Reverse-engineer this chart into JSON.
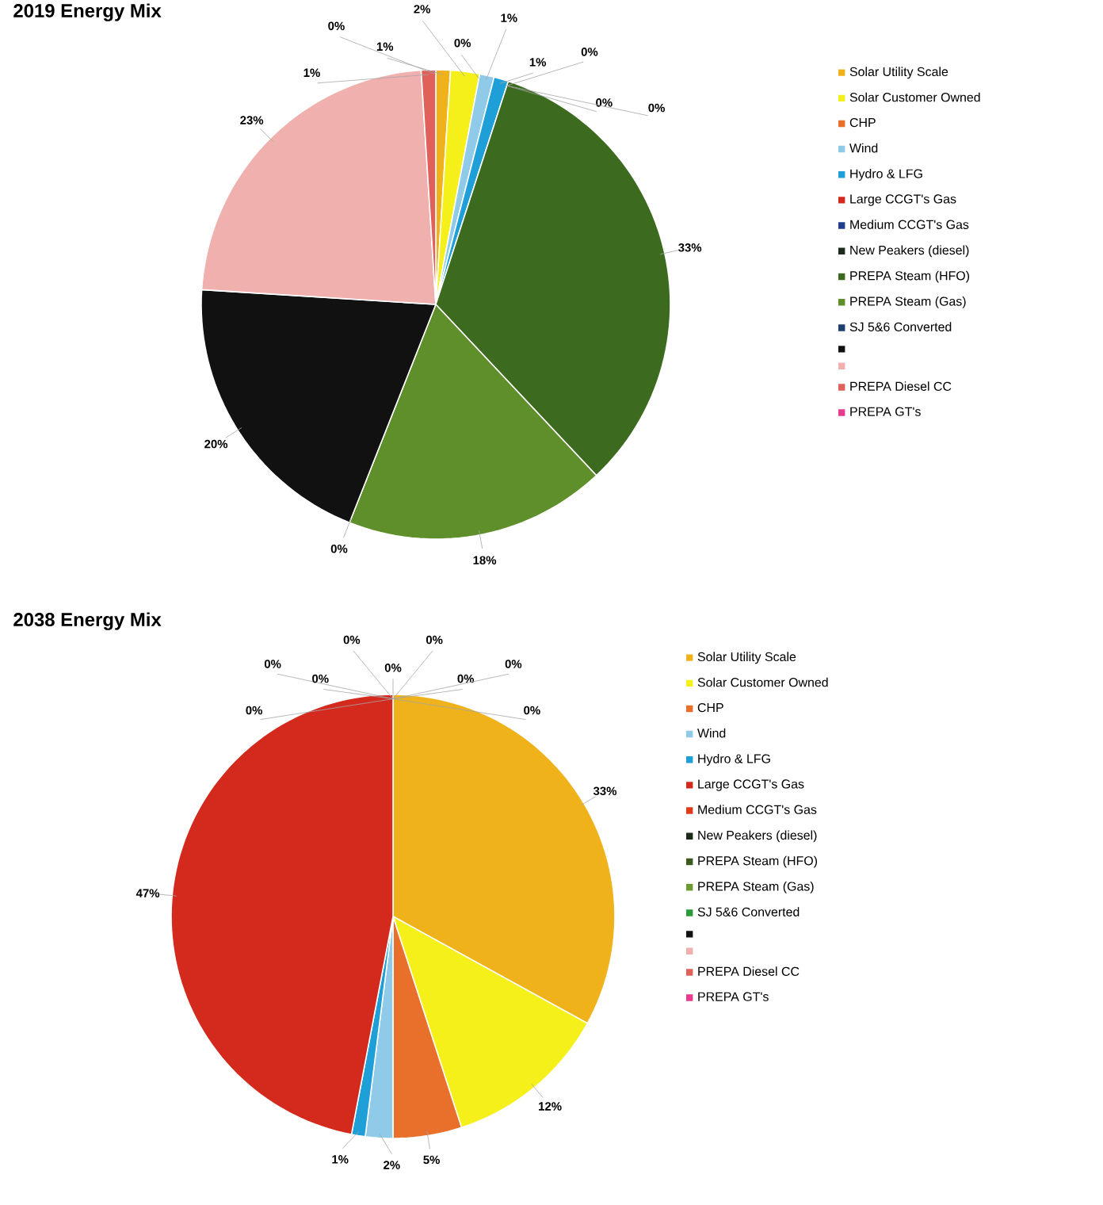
{
  "chart_data": [
    {
      "type": "pie",
      "title": "2019 Energy Mix",
      "categories": [
        "Solar Utility Scale",
        "Solar Customer Owned",
        "CHP",
        "Wind",
        "Hydro & LFG",
        "Large CCGT's Gas",
        "Medium CCGT's Gas",
        "New Peakers (diesel)",
        "PREPA Steam (HFO)",
        "PREPA Steam (Gas)",
        "SJ 5&6 Converted",
        null,
        null,
        "PREPA Diesel CC",
        "PREPA GT's"
      ],
      "values": [
        1,
        2,
        0,
        1,
        1,
        0,
        0,
        0,
        33,
        18,
        0,
        20,
        23,
        1,
        0
      ],
      "value_labels": [
        "1%",
        "2%",
        "0%",
        "1%",
        "1%",
        "0%",
        "0%",
        "0%",
        "33%",
        "18%",
        "0%",
        "20%",
        "23%",
        "1%",
        "0%"
      ],
      "colors": [
        "#f0b21a",
        "#f5ef1a",
        "#e8702a",
        "#8fcbe8",
        "#1e9fd8",
        "#d42a1e",
        "#1f3f8a",
        "#1c2a1c",
        "#3c6a1e",
        "#5e8f2a",
        "#1f3f70",
        "#111111",
        "#f0b0ae",
        "#e0605a",
        "#e83a8f"
      ],
      "legend": "right"
    },
    {
      "type": "pie",
      "title": "2038 Energy Mix",
      "categories": [
        "Solar Utility Scale",
        "Solar Customer Owned",
        "CHP",
        "Wind",
        "Hydro & LFG",
        "Large CCGT's Gas",
        "Medium CCGT's Gas",
        "New Peakers (diesel)",
        "PREPA Steam (HFO)",
        "PREPA Steam (Gas)",
        "SJ 5&6 Converted",
        null,
        null,
        "PREPA Diesel CC",
        "PREPA GT's"
      ],
      "values": [
        33,
        12,
        5,
        2,
        1,
        47,
        0,
        0,
        0,
        0,
        0,
        0,
        0,
        0,
        0
      ],
      "value_labels": [
        "33%",
        "12%",
        "5%",
        "2%",
        "1%",
        "47%",
        "0%",
        "0%",
        "0%",
        "0%",
        "0%",
        "0%",
        "0%",
        "0%",
        "0%"
      ],
      "colors": [
        "#f0b21a",
        "#f5ef1a",
        "#e8702a",
        "#8fcbe8",
        "#1e9fd8",
        "#d42a1e",
        "#e03a1a",
        "#1c2a1c",
        "#3a5a20",
        "#6a9a30",
        "#2a9a3a",
        "#111111",
        "#f0b0ae",
        "#e0605a",
        "#e83a8f"
      ],
      "legend": "right"
    }
  ]
}
